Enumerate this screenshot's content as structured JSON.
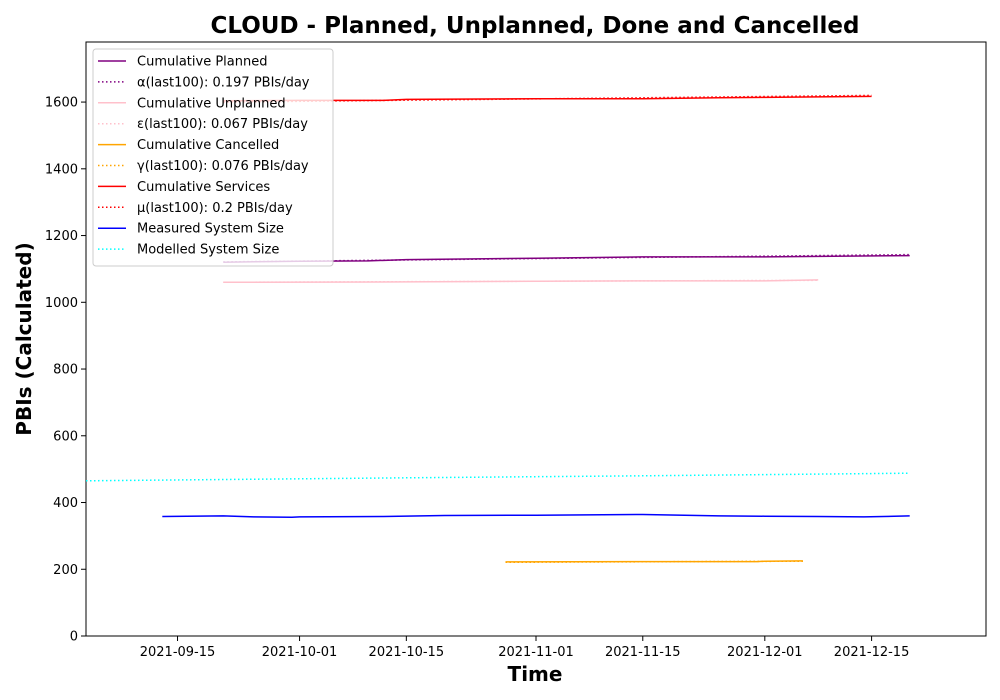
{
  "chart_data": {
    "type": "line",
    "title": "CLOUD - Planned, Unplanned, Done  and Cancelled",
    "xlabel": "Time",
    "ylabel": "PBIs (Calculated)",
    "xlim": [
      "2021-09-03",
      "2021-12-30"
    ],
    "ylim": [
      0,
      1780
    ],
    "x_tick_labels": [
      "2021-09-15",
      "2021-10-01",
      "2021-10-15",
      "2021-11-01",
      "2021-11-15",
      "2021-12-01",
      "2021-12-15"
    ],
    "y_tick_labels": [
      "0",
      "200",
      "400",
      "600",
      "800",
      "1000",
      "1200",
      "1400",
      "1600"
    ],
    "grid": false,
    "legend_position": "top-left",
    "series": [
      {
        "name": "Cumulative Planned",
        "color": "#800080",
        "style": "solid",
        "points": [
          [
            "2021-09-21",
            1120
          ],
          [
            "2021-10-01",
            1123
          ],
          [
            "2021-10-10",
            1124
          ],
          [
            "2021-10-15",
            1128
          ],
          [
            "2021-11-01",
            1132
          ],
          [
            "2021-11-15",
            1136
          ],
          [
            "2021-12-01",
            1136
          ],
          [
            "2021-12-10",
            1138
          ],
          [
            "2021-12-20",
            1140
          ]
        ]
      },
      {
        "name": "α(last100): 0.197 PBIs/day",
        "color": "#800080",
        "style": "dotted",
        "points": [
          [
            "2021-09-21",
            1121
          ],
          [
            "2021-12-20",
            1143
          ]
        ]
      },
      {
        "name": "Cumulative Unplanned",
        "color": "#ffc0cb",
        "style": "solid",
        "points": [
          [
            "2021-09-21",
            1060
          ],
          [
            "2021-10-15",
            1061
          ],
          [
            "2021-11-01",
            1063
          ],
          [
            "2021-11-15",
            1064
          ],
          [
            "2021-12-01",
            1064
          ],
          [
            "2021-12-08",
            1067
          ]
        ]
      },
      {
        "name": "ε(last100): 0.067 PBIs/day",
        "color": "#ffc0cb",
        "style": "dotted",
        "points": [
          [
            "2021-09-21",
            1060
          ],
          [
            "2021-12-08",
            1066
          ]
        ]
      },
      {
        "name": "Cumulative Cancelled",
        "color": "#ffa500",
        "style": "solid",
        "points": [
          [
            "2021-10-28",
            222
          ],
          [
            "2021-11-15",
            223
          ],
          [
            "2021-11-30",
            223
          ],
          [
            "2021-12-01",
            224
          ],
          [
            "2021-12-06",
            225
          ]
        ]
      },
      {
        "name": "γ(last100): 0.076 PBIs/day",
        "color": "#ffa500",
        "style": "dotted",
        "points": [
          [
            "2021-10-28",
            221
          ],
          [
            "2021-12-06",
            224
          ]
        ]
      },
      {
        "name": "Cumulative Services",
        "color": "#ff0000",
        "style": "solid",
        "points": [
          [
            "2021-09-21",
            1604
          ],
          [
            "2021-10-01",
            1605
          ],
          [
            "2021-10-12",
            1605
          ],
          [
            "2021-10-15",
            1608
          ],
          [
            "2021-11-01",
            1610
          ],
          [
            "2021-11-15",
            1610
          ],
          [
            "2021-11-25",
            1613
          ],
          [
            "2021-12-01",
            1614
          ],
          [
            "2021-12-15",
            1617
          ]
        ]
      },
      {
        "name": "μ(last100): 0.2 PBIs/day",
        "color": "#ff0000",
        "style": "dotted",
        "points": [
          [
            "2021-09-21",
            1600
          ],
          [
            "2021-12-15",
            1620
          ]
        ]
      },
      {
        "name": "Measured System Size",
        "color": "#0000ff",
        "style": "solid",
        "points": [
          [
            "2021-09-13",
            358
          ],
          [
            "2021-09-21",
            360
          ],
          [
            "2021-09-25",
            357
          ],
          [
            "2021-09-30",
            356
          ],
          [
            "2021-10-01",
            357
          ],
          [
            "2021-10-12",
            358
          ],
          [
            "2021-10-20",
            361
          ],
          [
            "2021-11-01",
            362
          ],
          [
            "2021-11-15",
            364
          ],
          [
            "2021-11-25",
            360
          ],
          [
            "2021-12-01",
            359
          ],
          [
            "2021-12-08",
            358
          ],
          [
            "2021-12-14",
            357
          ],
          [
            "2021-12-20",
            360
          ]
        ]
      },
      {
        "name": "Modelled System Size",
        "color": "#00ffff",
        "style": "dotted",
        "points": [
          [
            "2021-09-03",
            465
          ],
          [
            "2021-10-15",
            474
          ],
          [
            "2021-11-15",
            480
          ],
          [
            "2021-12-20",
            488
          ]
        ]
      }
    ]
  }
}
